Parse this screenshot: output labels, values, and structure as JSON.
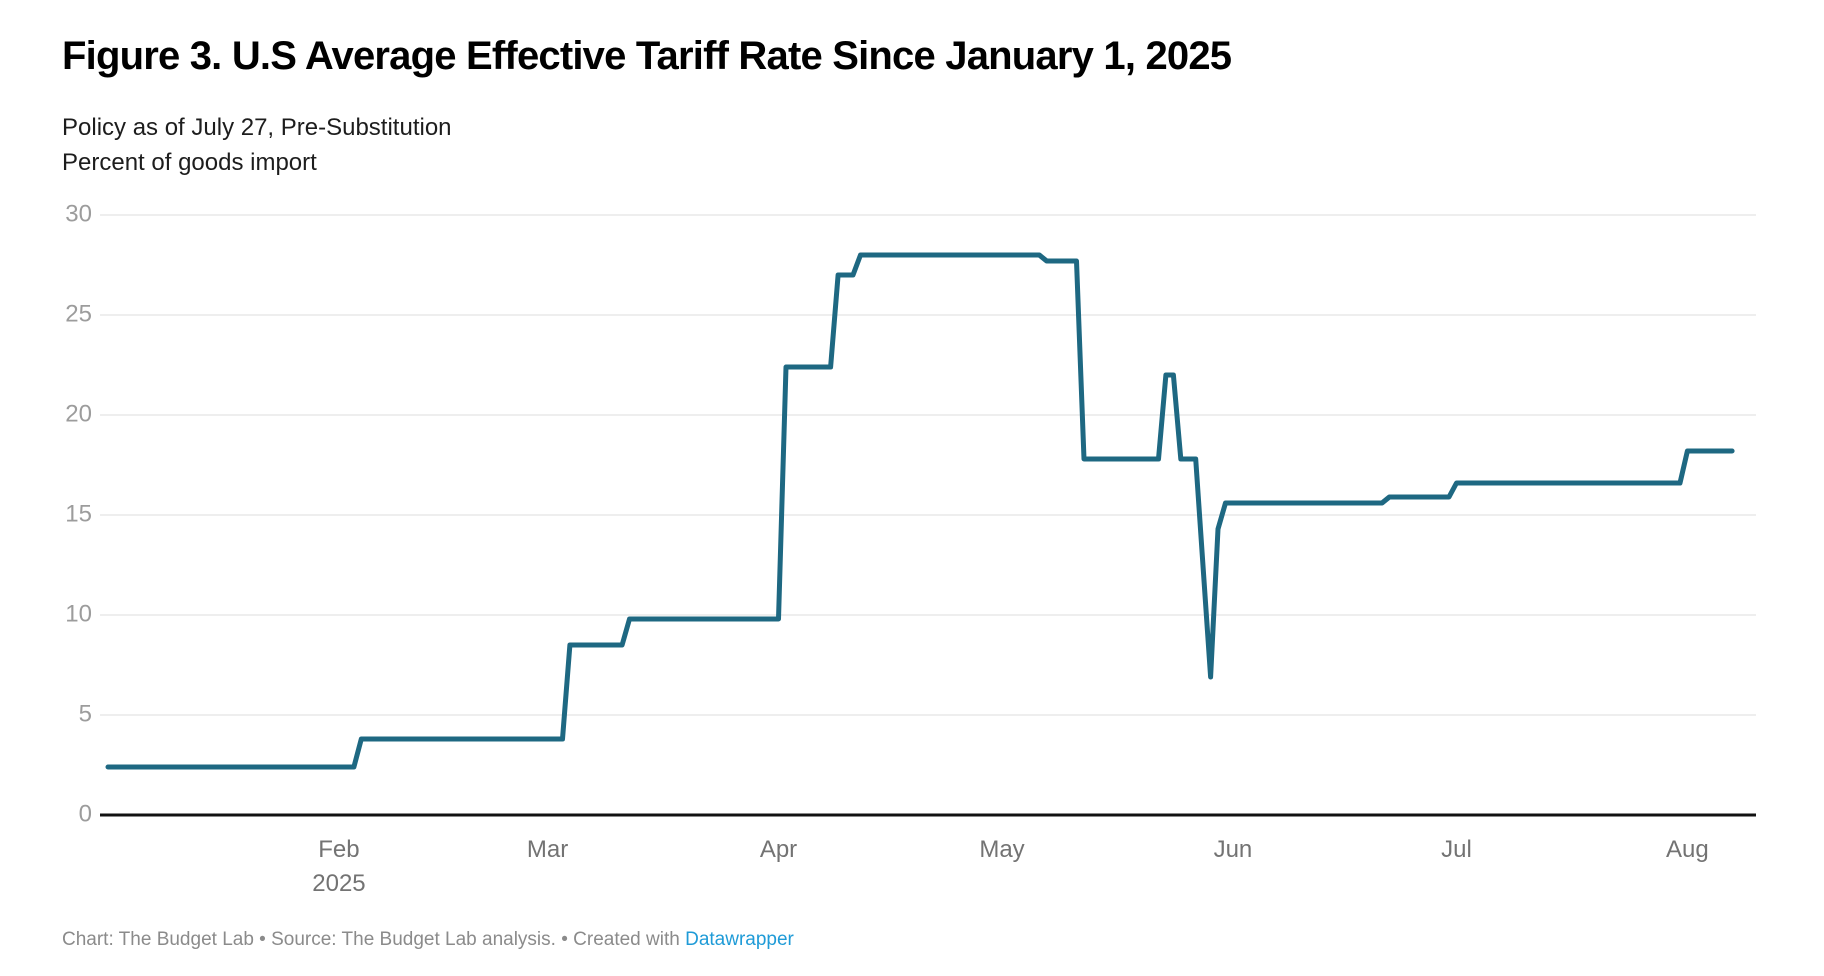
{
  "header": {
    "title": "Figure 3. U.S Average Effective Tariff Rate Since January 1, 2025",
    "subtitle_line1": "Policy as of July 27, Pre-Substitution",
    "subtitle_line2": "Percent of goods import"
  },
  "footer": {
    "prefix": "Chart: The Budget Lab • Source: The Budget Lab analysis. • Created with ",
    "link_label": "Datawrapper"
  },
  "chart_data": {
    "type": "line",
    "title": "Figure 3. U.S Average Effective Tariff Rate Since January 1, 2025",
    "subtitle": "Policy as of July 27, Pre-Substitution",
    "ylabel": "Percent of goods import",
    "xlabel": "",
    "ylim": [
      0,
      30
    ],
    "grid": true,
    "legend_position": "none",
    "y_ticks": [
      0,
      5,
      10,
      15,
      20,
      25,
      30
    ],
    "x_ticks": [
      {
        "label": "Feb",
        "sub": "2025",
        "date": "2025-02-01"
      },
      {
        "label": "Mar",
        "date": "2025-03-01"
      },
      {
        "label": "Apr",
        "date": "2025-04-01"
      },
      {
        "label": "May",
        "date": "2025-05-01"
      },
      {
        "label": "Jun",
        "date": "2025-06-01"
      },
      {
        "label": "Jul",
        "date": "2025-07-01"
      },
      {
        "label": "Aug",
        "date": "2025-08-01"
      }
    ],
    "series": [
      {
        "name": "U.S. average effective tariff rate",
        "points": [
          [
            "2025-01-01",
            2.4
          ],
          [
            "2025-02-03",
            2.4
          ],
          [
            "2025-02-04",
            3.8
          ],
          [
            "2025-03-03",
            3.8
          ],
          [
            "2025-03-04",
            8.5
          ],
          [
            "2025-03-11",
            8.5
          ],
          [
            "2025-03-12",
            9.8
          ],
          [
            "2025-04-01",
            9.8
          ],
          [
            "2025-04-02",
            22.4
          ],
          [
            "2025-04-08",
            22.4
          ],
          [
            "2025-04-09",
            27.0
          ],
          [
            "2025-04-11",
            27.0
          ],
          [
            "2025-04-12",
            28.0
          ],
          [
            "2025-05-06",
            28.0
          ],
          [
            "2025-05-07",
            27.7
          ],
          [
            "2025-05-11",
            27.7
          ],
          [
            "2025-05-12",
            17.8
          ],
          [
            "2025-05-22",
            17.8
          ],
          [
            "2025-05-23",
            22.0
          ],
          [
            "2025-05-24",
            22.0
          ],
          [
            "2025-05-25",
            17.8
          ],
          [
            "2025-05-27",
            17.8
          ],
          [
            "2025-05-29",
            6.9
          ],
          [
            "2025-05-30",
            14.3
          ],
          [
            "2025-05-31",
            15.6
          ],
          [
            "2025-06-21",
            15.6
          ],
          [
            "2025-06-22",
            15.9
          ],
          [
            "2025-06-30",
            15.9
          ],
          [
            "2025-07-01",
            16.6
          ],
          [
            "2025-07-31",
            16.6
          ],
          [
            "2025-08-01",
            18.2
          ],
          [
            "2025-08-07",
            18.2
          ]
        ]
      }
    ],
    "colors": {
      "line": "#1e6882",
      "grid": "#e9e9e9",
      "baseline": "#111111",
      "y_tick_label": "#9c9c9c",
      "x_tick_label": "#737373"
    }
  }
}
